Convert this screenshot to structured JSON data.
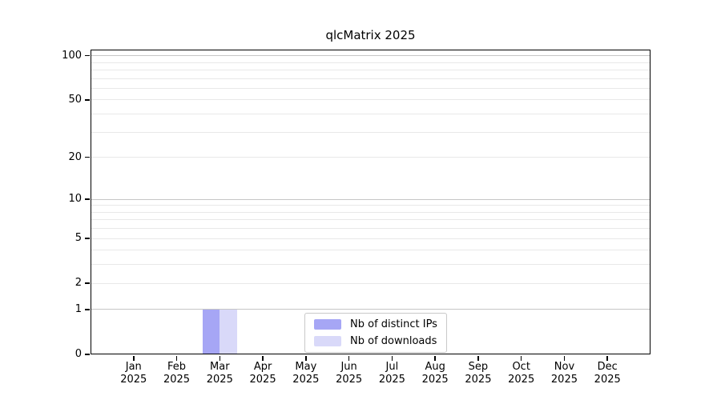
{
  "chart_data": {
    "type": "bar",
    "title": "qlcMatrix 2025",
    "year_label": "2025",
    "months": [
      "Jan",
      "Feb",
      "Mar",
      "Apr",
      "May",
      "Jun",
      "Jul",
      "Aug",
      "Sep",
      "Oct",
      "Nov",
      "Dec"
    ],
    "categories": [
      "Jan 2025",
      "Feb 2025",
      "Mar 2025",
      "Apr 2025",
      "May 2025",
      "Jun 2025",
      "Jul 2025",
      "Aug 2025",
      "Sep 2025",
      "Oct 2025",
      "Nov 2025",
      "Dec 2025"
    ],
    "series": [
      {
        "name": "Nb of distinct IPs",
        "color": "#a6a6f5",
        "values": [
          0,
          0,
          1,
          0,
          0,
          0,
          0,
          0,
          0,
          0,
          0,
          0
        ]
      },
      {
        "name": "Nb of downloads",
        "color": "#d9d9f9",
        "values": [
          0,
          0,
          1,
          0,
          0,
          0,
          0,
          0,
          0,
          0,
          0,
          0
        ]
      }
    ],
    "yscale": "log1p",
    "ylim": [
      0,
      110
    ],
    "y_tick_labels": [
      0,
      1,
      2,
      5,
      10,
      20,
      50,
      100
    ],
    "y_minor_gridlines": [
      3,
      4,
      6,
      7,
      8,
      9,
      30,
      40,
      60,
      70,
      80,
      90
    ],
    "y_decade_gridlines": [
      1,
      10,
      100
    ],
    "grid": "horizontal-only",
    "legend_position": "lower center",
    "xlabel": "",
    "ylabel": ""
  },
  "colors": {
    "background": "#ffffff",
    "axis": "#000000",
    "grid_major": "#c6c6c6",
    "grid_minor": "#e8e8e8",
    "legend_border": "#c9c9c9",
    "bar_distinct_ips": "#a6a6f5",
    "bar_downloads": "#d9d9f9"
  }
}
